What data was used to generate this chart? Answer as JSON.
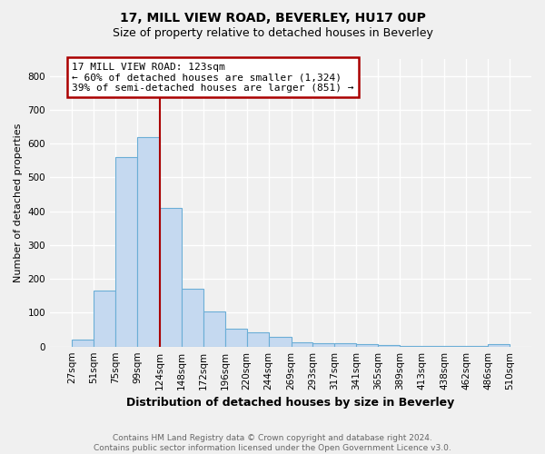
{
  "title1": "17, MILL VIEW ROAD, BEVERLEY, HU17 0UP",
  "title2": "Size of property relative to detached houses in Beverley",
  "xlabel": "Distribution of detached houses by size in Beverley",
  "ylabel": "Number of detached properties",
  "footnote": "Contains HM Land Registry data © Crown copyright and database right 2024.\nContains public sector information licensed under the Open Government Licence v3.0.",
  "bin_labels": [
    "27sqm",
    "51sqm",
    "75sqm",
    "99sqm",
    "124sqm",
    "148sqm",
    "172sqm",
    "196sqm",
    "220sqm",
    "244sqm",
    "269sqm",
    "293sqm",
    "317sqm",
    "341sqm",
    "365sqm",
    "389sqm",
    "413sqm",
    "438sqm",
    "462sqm",
    "486sqm",
    "510sqm"
  ],
  "bar_values": [
    20,
    165,
    560,
    620,
    410,
    170,
    105,
    53,
    43,
    30,
    13,
    10,
    10,
    7,
    5,
    2,
    1,
    1,
    1,
    7,
    5
  ],
  "bar_color": "#c5d9f0",
  "bar_edgecolor": "#6baed6",
  "bar_linewidth": 0.8,
  "vline_x": 124,
  "vline_color": "#aa0000",
  "annotation_line1": "17 MILL VIEW ROAD: 123sqm",
  "annotation_line2": "← 60% of detached houses are smaller (1,324)",
  "annotation_line3": "39% of semi-detached houses are larger (851) →",
  "annotation_box_edgecolor": "#aa0000",
  "annotation_box_facecolor": "white",
  "ylim": [
    0,
    850
  ],
  "yticks": [
    0,
    100,
    200,
    300,
    400,
    500,
    600,
    700,
    800
  ],
  "bin_edges": [
    27,
    51,
    75,
    99,
    124,
    148,
    172,
    196,
    220,
    244,
    269,
    293,
    317,
    341,
    365,
    389,
    413,
    438,
    462,
    486,
    510
  ],
  "background_color": "#f0f0f0",
  "grid_color": "#ffffff",
  "title1_fontsize": 10,
  "title2_fontsize": 9,
  "xlabel_fontsize": 9,
  "ylabel_fontsize": 8,
  "tick_fontsize": 7.5,
  "footnote_fontsize": 6.5,
  "ann_fontsize": 8
}
